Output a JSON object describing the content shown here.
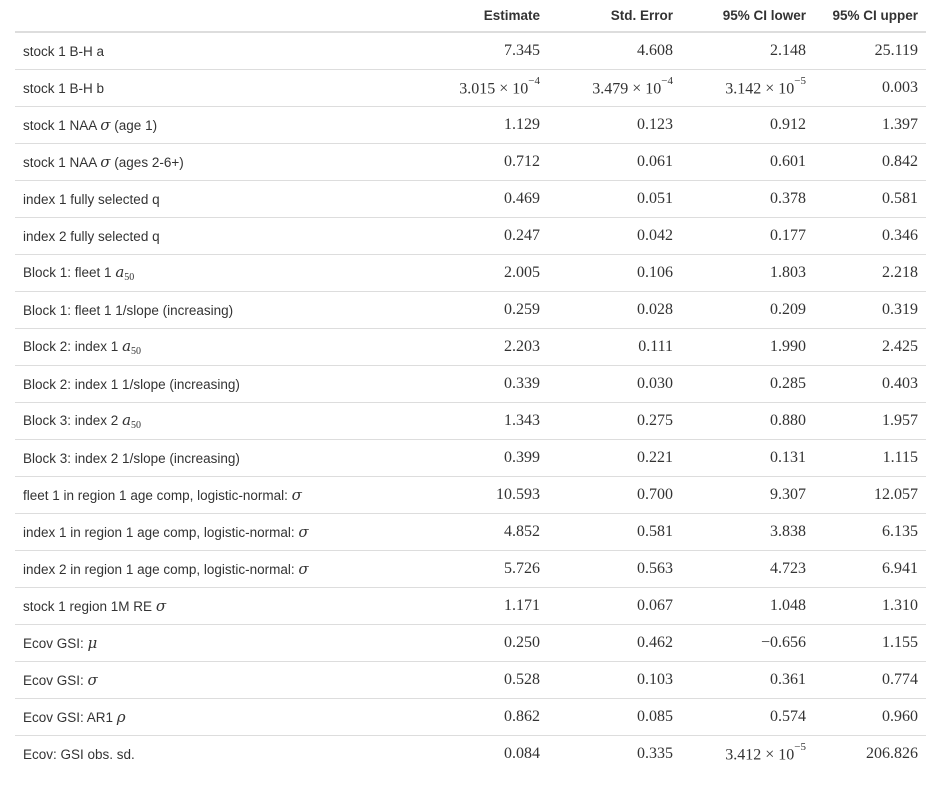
{
  "table": {
    "headers": [
      "",
      "Estimate",
      "Std. Error",
      "95% CI lower",
      "95% CI upper"
    ],
    "rows": [
      {
        "label": {
          "text": "stock 1 B-H a"
        },
        "values": [
          {
            "v": "7.345"
          },
          {
            "v": "4.608"
          },
          {
            "v": "2.148"
          },
          {
            "v": "25.119"
          }
        ]
      },
      {
        "label": {
          "text": "stock 1 B-H b"
        },
        "values": [
          {
            "mantissa": "3.015",
            "times": "×",
            "base": "10",
            "exponent": "−4"
          },
          {
            "mantissa": "3.479",
            "times": "×",
            "base": "10",
            "exponent": "−4"
          },
          {
            "mantissa": "3.142",
            "times": "×",
            "base": "10",
            "exponent": "−5"
          },
          {
            "v": "0.003"
          }
        ]
      },
      {
        "label": {
          "text": "stock 1 NAA ",
          "symbol": "σ",
          "after": " (age 1)"
        },
        "values": [
          {
            "v": "1.129"
          },
          {
            "v": "0.123"
          },
          {
            "v": "0.912"
          },
          {
            "v": "1.397"
          }
        ]
      },
      {
        "label": {
          "text": "stock 1 NAA ",
          "symbol": "σ",
          "after": " (ages 2-6+)"
        },
        "values": [
          {
            "v": "0.712"
          },
          {
            "v": "0.061"
          },
          {
            "v": "0.601"
          },
          {
            "v": "0.842"
          }
        ]
      },
      {
        "label": {
          "text": "index 1 fully selected q"
        },
        "values": [
          {
            "v": "0.469"
          },
          {
            "v": "0.051"
          },
          {
            "v": "0.378"
          },
          {
            "v": "0.581"
          }
        ]
      },
      {
        "label": {
          "text": "index 2 fully selected q"
        },
        "values": [
          {
            "v": "0.247"
          },
          {
            "v": "0.042"
          },
          {
            "v": "0.177"
          },
          {
            "v": "0.346"
          }
        ]
      },
      {
        "label": {
          "text": "Block 1: fleet 1 ",
          "symbol": "a",
          "subscript": "50"
        },
        "values": [
          {
            "v": "2.005"
          },
          {
            "v": "0.106"
          },
          {
            "v": "1.803"
          },
          {
            "v": "2.218"
          }
        ]
      },
      {
        "label": {
          "text": "Block 1: fleet 1 1/slope (increasing)"
        },
        "values": [
          {
            "v": "0.259"
          },
          {
            "v": "0.028"
          },
          {
            "v": "0.209"
          },
          {
            "v": "0.319"
          }
        ]
      },
      {
        "label": {
          "text": "Block 2: index 1 ",
          "symbol": "a",
          "subscript": "50"
        },
        "values": [
          {
            "v": "2.203"
          },
          {
            "v": "0.111"
          },
          {
            "v": "1.990"
          },
          {
            "v": "2.425"
          }
        ]
      },
      {
        "label": {
          "text": "Block 2: index 1 1/slope (increasing)"
        },
        "values": [
          {
            "v": "0.339"
          },
          {
            "v": "0.030"
          },
          {
            "v": "0.285"
          },
          {
            "v": "0.403"
          }
        ]
      },
      {
        "label": {
          "text": "Block 3: index 2 ",
          "symbol": "a",
          "subscript": "50"
        },
        "values": [
          {
            "v": "1.343"
          },
          {
            "v": "0.275"
          },
          {
            "v": "0.880"
          },
          {
            "v": "1.957"
          }
        ]
      },
      {
        "label": {
          "text": "Block 3: index 2 1/slope (increasing)"
        },
        "values": [
          {
            "v": "0.399"
          },
          {
            "v": "0.221"
          },
          {
            "v": "0.131"
          },
          {
            "v": "1.115"
          }
        ]
      },
      {
        "label": {
          "text": "fleet 1 in region 1 age comp, logistic-normal: ",
          "symbol": "σ"
        },
        "values": [
          {
            "v": "10.593"
          },
          {
            "v": "0.700"
          },
          {
            "v": "9.307"
          },
          {
            "v": "12.057"
          }
        ]
      },
      {
        "label": {
          "text": "index 1 in region 1 age comp, logistic-normal: ",
          "symbol": "σ"
        },
        "values": [
          {
            "v": "4.852"
          },
          {
            "v": "0.581"
          },
          {
            "v": "3.838"
          },
          {
            "v": "6.135"
          }
        ]
      },
      {
        "label": {
          "text": "index 2 in region 1 age comp, logistic-normal: ",
          "symbol": "σ"
        },
        "values": [
          {
            "v": "5.726"
          },
          {
            "v": "0.563"
          },
          {
            "v": "4.723"
          },
          {
            "v": "6.941"
          }
        ]
      },
      {
        "label": {
          "text": "stock 1 region 1M RE ",
          "symbol": "σ"
        },
        "values": [
          {
            "v": "1.171"
          },
          {
            "v": "0.067"
          },
          {
            "v": "1.048"
          },
          {
            "v": "1.310"
          }
        ]
      },
      {
        "label": {
          "text": "Ecov GSI: ",
          "symbol": "μ"
        },
        "values": [
          {
            "v": "0.250"
          },
          {
            "v": "0.462"
          },
          {
            "v": "−0.656"
          },
          {
            "v": "1.155"
          }
        ]
      },
      {
        "label": {
          "text": "Ecov GSI: ",
          "symbol": "σ"
        },
        "values": [
          {
            "v": "0.528"
          },
          {
            "v": "0.103"
          },
          {
            "v": "0.361"
          },
          {
            "v": "0.774"
          }
        ]
      },
      {
        "label": {
          "text": "Ecov GSI: AR1 ",
          "symbol": "ρ"
        },
        "values": [
          {
            "v": "0.862"
          },
          {
            "v": "0.085"
          },
          {
            "v": "0.574"
          },
          {
            "v": "0.960"
          }
        ]
      },
      {
        "label": {
          "text": "Ecov: GSI obs. sd."
        },
        "values": [
          {
            "v": "0.084"
          },
          {
            "v": "0.335"
          },
          {
            "mantissa": "3.412",
            "times": "×",
            "base": "10",
            "exponent": "−5"
          },
          {
            "v": "206.826"
          }
        ]
      }
    ]
  }
}
